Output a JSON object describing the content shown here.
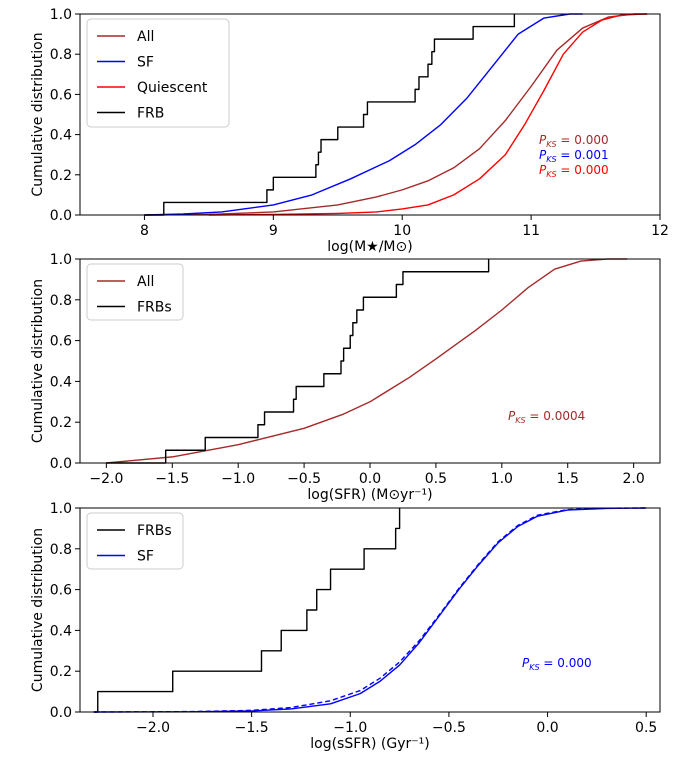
{
  "chart_data": [
    {
      "type": "line",
      "xlabel": "log(M★/M⊙)",
      "ylabel": "Cumulative distribution",
      "xlim": [
        7.5,
        12.0
      ],
      "ylim": [
        0.0,
        1.0
      ],
      "xticks": [
        {
          "v": 8,
          "label": "8"
        },
        {
          "v": 9,
          "label": "9"
        },
        {
          "v": 10,
          "label": "10"
        },
        {
          "v": 11,
          "label": "11"
        },
        {
          "v": 12,
          "label": "12"
        }
      ],
      "yticks": [
        {
          "v": 0,
          "label": "0.0"
        },
        {
          "v": 0.2,
          "label": "0.2"
        },
        {
          "v": 0.4,
          "label": "0.4"
        },
        {
          "v": 0.6,
          "label": "0.6"
        },
        {
          "v": 0.8,
          "label": "0.8"
        },
        {
          "v": 1,
          "label": "1.0"
        }
      ],
      "legend_position": "upper-left",
      "series": [
        {
          "name": "All",
          "color": "#a52a2a",
          "style": "line",
          "points": [
            [
              8.0,
              0.0
            ],
            [
              8.5,
              0.003
            ],
            [
              9.0,
              0.015
            ],
            [
              9.5,
              0.05
            ],
            [
              9.8,
              0.09
            ],
            [
              10.0,
              0.125
            ],
            [
              10.2,
              0.17
            ],
            [
              10.4,
              0.235
            ],
            [
              10.6,
              0.33
            ],
            [
              10.8,
              0.47
            ],
            [
              11.0,
              0.64
            ],
            [
              11.2,
              0.82
            ],
            [
              11.4,
              0.93
            ],
            [
              11.6,
              0.985
            ],
            [
              11.8,
              1.0
            ],
            [
              11.9,
              1.0
            ]
          ]
        },
        {
          "name": "SF",
          "color": "#0000ff",
          "style": "line",
          "points": [
            [
              8.0,
              0.0
            ],
            [
              8.3,
              0.005
            ],
            [
              8.6,
              0.015
            ],
            [
              9.0,
              0.05
            ],
            [
              9.3,
              0.1
            ],
            [
              9.6,
              0.18
            ],
            [
              9.9,
              0.27
            ],
            [
              10.1,
              0.35
            ],
            [
              10.3,
              0.45
            ],
            [
              10.5,
              0.58
            ],
            [
              10.7,
              0.74
            ],
            [
              10.9,
              0.9
            ],
            [
              11.1,
              0.98
            ],
            [
              11.3,
              1.0
            ],
            [
              11.4,
              1.0
            ]
          ]
        },
        {
          "name": "Quiescent",
          "color": "#ff0000",
          "style": "line",
          "points": [
            [
              8.5,
              0.0
            ],
            [
              9.0,
              0.003
            ],
            [
              9.5,
              0.008
            ],
            [
              9.8,
              0.015
            ],
            [
              10.0,
              0.03
            ],
            [
              10.2,
              0.05
            ],
            [
              10.4,
              0.1
            ],
            [
              10.6,
              0.18
            ],
            [
              10.8,
              0.3
            ],
            [
              10.95,
              0.45
            ],
            [
              11.1,
              0.62
            ],
            [
              11.25,
              0.8
            ],
            [
              11.4,
              0.91
            ],
            [
              11.55,
              0.97
            ],
            [
              11.7,
              0.995
            ],
            [
              11.9,
              1.0
            ]
          ]
        },
        {
          "name": "FRB",
          "color": "#000000",
          "style": "step",
          "points": [
            [
              8.0,
              0.0
            ],
            [
              8.15,
              0.0625
            ],
            [
              8.95,
              0.125
            ],
            [
              9.0,
              0.1875
            ],
            [
              9.33,
              0.25
            ],
            [
              9.35,
              0.3125
            ],
            [
              9.37,
              0.375
            ],
            [
              9.5,
              0.4375
            ],
            [
              9.7,
              0.5
            ],
            [
              9.73,
              0.5625
            ],
            [
              10.1,
              0.625
            ],
            [
              10.13,
              0.6875
            ],
            [
              10.2,
              0.75
            ],
            [
              10.23,
              0.8125
            ],
            [
              10.25,
              0.875
            ],
            [
              10.55,
              0.9375
            ],
            [
              10.87,
              1.0
            ]
          ]
        }
      ],
      "annotations": [
        {
          "prefix": "P",
          "subscript": "KS",
          "value": " = 0.000",
          "color": "#a52a2a"
        },
        {
          "prefix": "P",
          "subscript": "KS",
          "value": " = 0.001",
          "color": "#0000ff"
        },
        {
          "prefix": "P",
          "subscript": "KS",
          "value": " = 0.000",
          "color": "#ff0000"
        }
      ]
    },
    {
      "type": "line",
      "xlabel": "log(SFR) (M⊙yr⁻¹)",
      "ylabel": "Cumulative distribution",
      "xlim": [
        -2.2,
        2.2
      ],
      "ylim": [
        0.0,
        1.0
      ],
      "xticks": [
        {
          "v": -2.0,
          "label": "−2.0"
        },
        {
          "v": -1.5,
          "label": "−1.5"
        },
        {
          "v": -1.0,
          "label": "−1.0"
        },
        {
          "v": -0.5,
          "label": "−0.5"
        },
        {
          "v": 0.0,
          "label": "0.0"
        },
        {
          "v": 0.5,
          "label": "0.5"
        },
        {
          "v": 1.0,
          "label": "1.0"
        },
        {
          "v": 1.5,
          "label": "1.5"
        },
        {
          "v": 2.0,
          "label": "2.0"
        }
      ],
      "yticks": [
        {
          "v": 0,
          "label": "0.0"
        },
        {
          "v": 0.2,
          "label": "0.2"
        },
        {
          "v": 0.4,
          "label": "0.4"
        },
        {
          "v": 0.6,
          "label": "0.6"
        },
        {
          "v": 0.8,
          "label": "0.8"
        },
        {
          "v": 1,
          "label": "1.0"
        }
      ],
      "legend_position": "upper-left",
      "series": [
        {
          "name": "All",
          "color": "#a52a2a",
          "style": "line",
          "points": [
            [
              -2.0,
              0.0
            ],
            [
              -1.5,
              0.03
            ],
            [
              -1.0,
              0.09
            ],
            [
              -0.5,
              0.17
            ],
            [
              -0.2,
              0.24
            ],
            [
              0.0,
              0.3
            ],
            [
              0.3,
              0.42
            ],
            [
              0.5,
              0.51
            ],
            [
              0.8,
              0.65
            ],
            [
              1.0,
              0.75
            ],
            [
              1.2,
              0.86
            ],
            [
              1.4,
              0.95
            ],
            [
              1.6,
              0.99
            ],
            [
              1.8,
              1.0
            ],
            [
              1.95,
              1.0
            ]
          ]
        },
        {
          "name": "FRBs",
          "color": "#000000",
          "style": "step",
          "points": [
            [
              -2.0,
              0.0
            ],
            [
              -1.55,
              0.0625
            ],
            [
              -1.25,
              0.125
            ],
            [
              -0.85,
              0.1875
            ],
            [
              -0.8,
              0.25
            ],
            [
              -0.58,
              0.3125
            ],
            [
              -0.56,
              0.375
            ],
            [
              -0.35,
              0.4375
            ],
            [
              -0.22,
              0.5
            ],
            [
              -0.2,
              0.5625
            ],
            [
              -0.15,
              0.625
            ],
            [
              -0.13,
              0.6875
            ],
            [
              -0.1,
              0.75
            ],
            [
              -0.05,
              0.8125
            ],
            [
              0.2,
              0.875
            ],
            [
              0.25,
              0.9375
            ],
            [
              0.9,
              1.0
            ]
          ]
        }
      ],
      "annotations": [
        {
          "prefix": "P",
          "subscript": "KS",
          "value": " = 0.0004",
          "color": "#a52a2a"
        }
      ]
    },
    {
      "type": "line",
      "xlabel": "log(sSFR) (Gyr⁻¹)",
      "ylabel": "Cumulative distribution",
      "xlim": [
        -2.37,
        0.57
      ],
      "ylim": [
        0.0,
        1.0
      ],
      "xticks": [
        {
          "v": -2.0,
          "label": "−2.0"
        },
        {
          "v": -1.5,
          "label": "−1.5"
        },
        {
          "v": -1.0,
          "label": "−1.0"
        },
        {
          "v": -0.5,
          "label": "−0.5"
        },
        {
          "v": 0.0,
          "label": "0.0"
        },
        {
          "v": 0.5,
          "label": "0.5"
        }
      ],
      "yticks": [
        {
          "v": 0,
          "label": "0.0"
        },
        {
          "v": 0.2,
          "label": "0.2"
        },
        {
          "v": 0.4,
          "label": "0.4"
        },
        {
          "v": 0.6,
          "label": "0.6"
        },
        {
          "v": 0.8,
          "label": "0.8"
        },
        {
          "v": 1,
          "label": "1.0"
        }
      ],
      "legend_position": "upper-left",
      "series": [
        {
          "name": "FRBs",
          "color": "#000000",
          "style": "step",
          "points": [
            [
              -2.3,
              0.0
            ],
            [
              -2.28,
              0.1
            ],
            [
              -1.9,
              0.2
            ],
            [
              -1.45,
              0.3
            ],
            [
              -1.35,
              0.4
            ],
            [
              -1.22,
              0.5
            ],
            [
              -1.17,
              0.6
            ],
            [
              -1.1,
              0.7
            ],
            [
              -0.93,
              0.8
            ],
            [
              -0.77,
              0.9
            ],
            [
              -0.75,
              1.0
            ]
          ]
        },
        {
          "name": "SF",
          "color": "#0000ff",
          "style": "line",
          "points": [
            [
              -2.3,
              0.0
            ],
            [
              -1.8,
              0.001
            ],
            [
              -1.5,
              0.005
            ],
            [
              -1.3,
              0.015
            ],
            [
              -1.1,
              0.04
            ],
            [
              -0.95,
              0.09
            ],
            [
              -0.85,
              0.15
            ],
            [
              -0.75,
              0.23
            ],
            [
              -0.65,
              0.34
            ],
            [
              -0.55,
              0.47
            ],
            [
              -0.45,
              0.6
            ],
            [
              -0.35,
              0.72
            ],
            [
              -0.25,
              0.83
            ],
            [
              -0.15,
              0.91
            ],
            [
              -0.05,
              0.96
            ],
            [
              0.1,
              0.99
            ],
            [
              0.3,
              0.998
            ],
            [
              0.5,
              1.0
            ]
          ]
        },
        {
          "name": "",
          "color": "#0000ff",
          "style": "dashed",
          "points": [
            [
              -2.3,
              0.0
            ],
            [
              -1.8,
              0.002
            ],
            [
              -1.5,
              0.008
            ],
            [
              -1.3,
              0.022
            ],
            [
              -1.1,
              0.055
            ],
            [
              -0.95,
              0.105
            ],
            [
              -0.85,
              0.165
            ],
            [
              -0.75,
              0.245
            ],
            [
              -0.65,
              0.35
            ],
            [
              -0.55,
              0.475
            ],
            [
              -0.45,
              0.605
            ],
            [
              -0.35,
              0.725
            ],
            [
              -0.25,
              0.835
            ],
            [
              -0.15,
              0.915
            ],
            [
              -0.05,
              0.965
            ],
            [
              0.1,
              0.992
            ],
            [
              0.3,
              0.999
            ],
            [
              0.5,
              1.0
            ]
          ]
        }
      ],
      "annotations": [
        {
          "prefix": "P",
          "subscript": "KS",
          "value": " = 0.000",
          "color": "#0000ff"
        }
      ]
    }
  ]
}
